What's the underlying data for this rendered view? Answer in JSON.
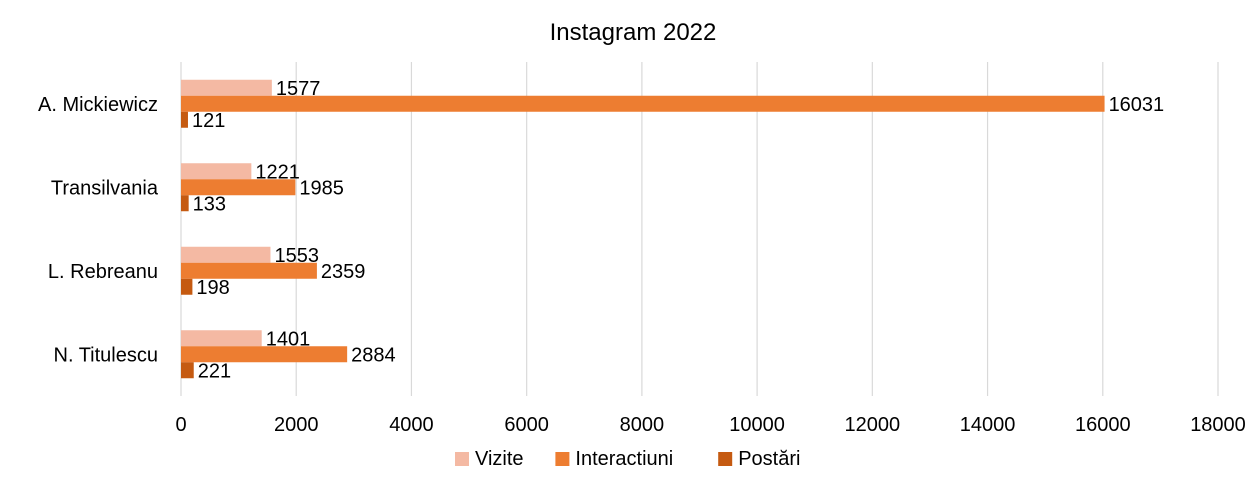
{
  "chart_data": {
    "type": "bar",
    "orientation": "horizontal",
    "title": "Instagram 2022",
    "categories": [
      "A. Mickiewicz",
      "Transilvania",
      "L. Rebreanu",
      "N. Titulescu"
    ],
    "series": [
      {
        "name": "Vizite",
        "color": "#F4B9A3",
        "values": [
          1577,
          1221,
          1553,
          1401
        ]
      },
      {
        "name": "Interactiuni",
        "color": "#ED7D31",
        "values": [
          16031,
          1985,
          2359,
          2884
        ]
      },
      {
        "name": "Postări",
        "color": "#C55A11",
        "values": [
          121,
          133,
          198,
          221
        ]
      }
    ],
    "xlim": [
      0,
      18000
    ],
    "xticks": [
      "0",
      "2000",
      "4000",
      "6000",
      "8000",
      "10000",
      "12000",
      "14000",
      "16000",
      "18000"
    ],
    "xlabel": "",
    "ylabel": "",
    "grid": "vertical",
    "legend_position": "bottom"
  }
}
